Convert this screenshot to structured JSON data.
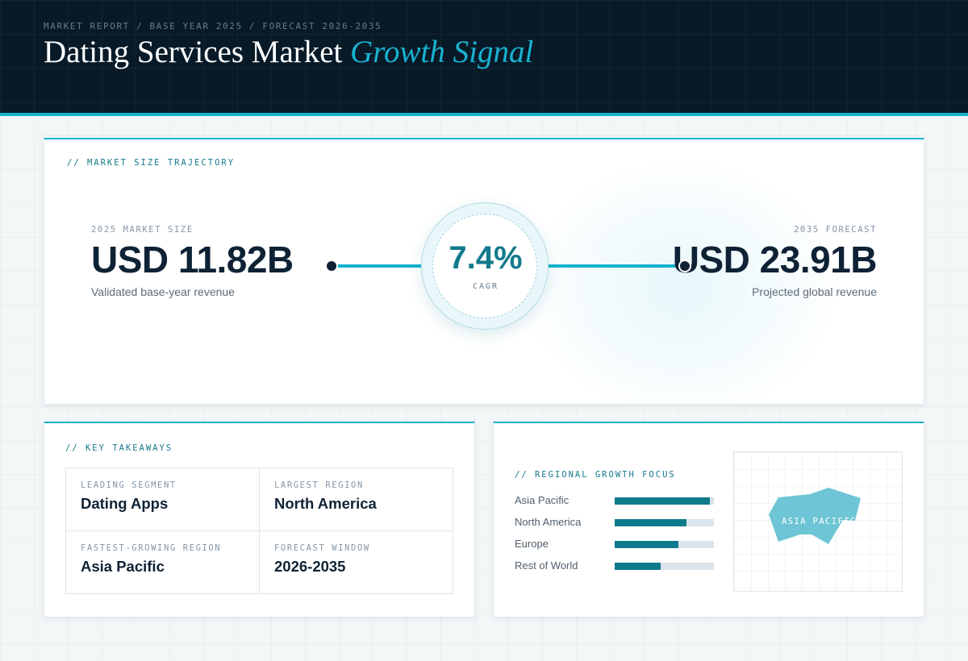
{
  "header": {
    "eyebrow": "MARKET REPORT / BASE YEAR 2025 / FORECAST 2026-2035",
    "title": "Dating Services Market",
    "title_accent": "Growth Signal"
  },
  "trajectory": {
    "section_label": "// MARKET SIZE TRAJECTORY",
    "start": {
      "caption": "2025 MARKET SIZE",
      "value": "USD 11.82B",
      "subtext": "Validated base-year revenue"
    },
    "cagr": {
      "value": "7.4%",
      "label": "CAGR"
    },
    "end": {
      "caption": "2035 FORECAST",
      "value": "USD 23.91B",
      "subtext": "Projected global revenue"
    }
  },
  "takeaways": {
    "section_label": "// KEY TAKEAWAYS",
    "items": [
      {
        "key": "LEADING SEGMENT",
        "value": "Dating Apps"
      },
      {
        "key": "LARGEST REGION",
        "value": "North America"
      },
      {
        "key": "FASTEST-GROWING REGION",
        "value": "Asia Pacific"
      },
      {
        "key": "FORECAST WINDOW",
        "value": "2026-2035"
      }
    ]
  },
  "regional": {
    "section_label": "// REGIONAL GROWTH FOCUS",
    "bars": [
      {
        "label": "Asia Pacific",
        "level": 0.96
      },
      {
        "label": "North America",
        "level": 0.72
      },
      {
        "label": "Europe",
        "level": 0.64
      },
      {
        "label": "Rest of World",
        "level": 0.46
      }
    ],
    "map_label": "ASIA PACIFIC"
  },
  "colors": {
    "accent": "#13b3cf",
    "bar_fill": "#0f7a8c",
    "map_region": "#5ebfd0",
    "header_bg": "#081a28"
  }
}
